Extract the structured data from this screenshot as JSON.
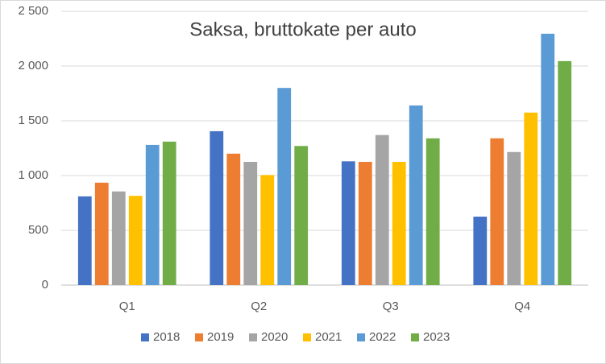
{
  "chart_data": {
    "type": "bar",
    "title": "Saksa, bruttokate per auto",
    "categories": [
      "Q1",
      "Q2",
      "Q3",
      "Q4"
    ],
    "series": [
      {
        "name": "2018",
        "color": "#4472c4",
        "values": [
          810,
          1405,
          1130,
          625
        ]
      },
      {
        "name": "2019",
        "color": "#ed7d31",
        "values": [
          935,
          1200,
          1125,
          1340
        ]
      },
      {
        "name": "2020",
        "color": "#a5a5a5",
        "values": [
          855,
          1125,
          1370,
          1215
        ]
      },
      {
        "name": "2021",
        "color": "#ffc000",
        "values": [
          815,
          1005,
          1125,
          1575
        ]
      },
      {
        "name": "2022",
        "color": "#5b9bd5",
        "values": [
          1280,
          1800,
          1640,
          2295
        ]
      },
      {
        "name": "2023",
        "color": "#70ad47",
        "values": [
          1310,
          1270,
          1340,
          2045
        ]
      }
    ],
    "ylim": [
      0,
      2500
    ],
    "yticks": [
      0,
      500,
      {
        "value": 1000,
        "label": "1 000"
      },
      {
        "value": 1500,
        "label": "1 500"
      },
      {
        "value": 2000,
        "label": "2 000"
      },
      {
        "value": 2500,
        "label": "2 500"
      }
    ],
    "grid": true,
    "legend": "bottom"
  }
}
